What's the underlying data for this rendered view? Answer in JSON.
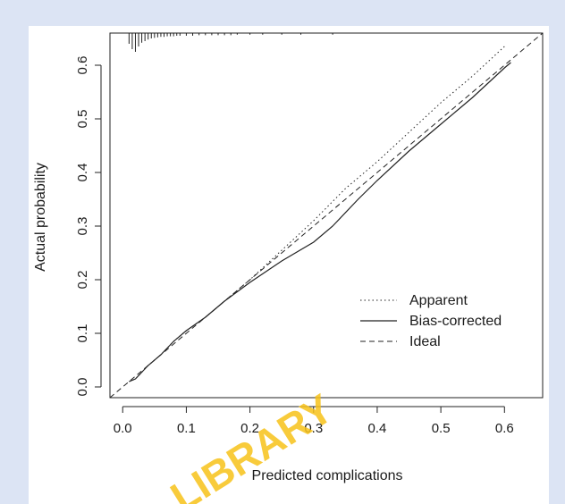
{
  "watermark": "LIBRARY",
  "chart_data": {
    "type": "line",
    "title": "",
    "xlabel": "Predicted complications",
    "ylabel": "Actual probability",
    "xlim": [
      -0.02,
      0.66
    ],
    "ylim": [
      -0.02,
      0.66
    ],
    "x_ticks": [
      "0.0",
      "0.1",
      "0.2",
      "0.3",
      "0.4",
      "0.5",
      "0.6"
    ],
    "x_tick_values": [
      0.0,
      0.1,
      0.2,
      0.3,
      0.4,
      0.5,
      0.6
    ],
    "y_ticks": [
      "0.0",
      "0.1",
      "0.2",
      "0.3",
      "0.4",
      "0.5",
      "0.6"
    ],
    "y_tick_values": [
      0.0,
      0.1,
      0.2,
      0.3,
      0.4,
      0.5,
      0.6
    ],
    "grid": false,
    "legend_position": "bottom-right",
    "series": [
      {
        "name": "Apparent",
        "style": "dotted",
        "x": [
          0.01,
          0.02,
          0.04,
          0.06,
          0.08,
          0.1,
          0.13,
          0.16,
          0.2,
          0.25,
          0.3,
          0.35,
          0.4,
          0.45,
          0.5,
          0.55,
          0.6
        ],
        "y": [
          0.01,
          0.015,
          0.04,
          0.06,
          0.085,
          0.105,
          0.13,
          0.16,
          0.2,
          0.255,
          0.31,
          0.37,
          0.42,
          0.475,
          0.53,
          0.58,
          0.635
        ]
      },
      {
        "name": "Bias-corrected",
        "style": "solid",
        "x": [
          0.01,
          0.02,
          0.04,
          0.06,
          0.08,
          0.1,
          0.13,
          0.16,
          0.2,
          0.25,
          0.3,
          0.33,
          0.37,
          0.4,
          0.45,
          0.5,
          0.55,
          0.6,
          0.61
        ],
        "y": [
          0.01,
          0.015,
          0.04,
          0.06,
          0.085,
          0.105,
          0.13,
          0.16,
          0.195,
          0.235,
          0.27,
          0.3,
          0.35,
          0.385,
          0.44,
          0.49,
          0.54,
          0.595,
          0.605
        ]
      },
      {
        "name": "Ideal",
        "style": "dashed",
        "x": [
          -0.02,
          0.66
        ],
        "y": [
          -0.02,
          0.66
        ]
      }
    ],
    "rug_x": [
      0.01,
      0.015,
      0.02,
      0.025,
      0.03,
      0.035,
      0.04,
      0.045,
      0.05,
      0.055,
      0.06,
      0.065,
      0.07,
      0.075,
      0.08,
      0.085,
      0.09,
      0.1,
      0.11,
      0.12,
      0.13,
      0.14,
      0.15,
      0.16,
      0.17,
      0.18,
      0.2,
      0.22,
      0.25,
      0.28,
      0.33
    ],
    "rug_height": [
      0.02,
      0.03,
      0.035,
      0.025,
      0.018,
      0.015,
      0.012,
      0.01,
      0.009,
      0.008,
      0.007,
      0.007,
      0.006,
      0.006,
      0.006,
      0.005,
      0.005,
      0.005,
      0.005,
      0.004,
      0.004,
      0.004,
      0.004,
      0.004,
      0.004,
      0.003,
      0.003,
      0.003,
      0.003,
      0.003,
      0.003
    ]
  }
}
